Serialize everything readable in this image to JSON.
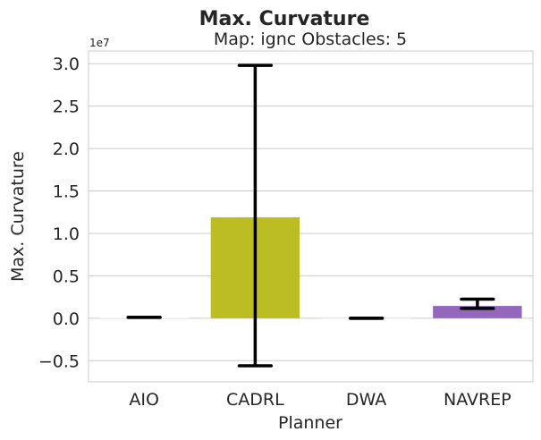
{
  "chart_data": {
    "type": "bar",
    "title": "Max. Curvature",
    "subtitle": "Map: ignc Obstacles: 5",
    "xlabel": "Planner",
    "ylabel": "Max. Curvature",
    "y_offset_label": "1e7",
    "y_scale": 10000000,
    "ylim": [
      -7500000,
      31500000
    ],
    "yticks": [
      -5000000,
      0,
      5000000,
      10000000,
      15000000,
      20000000,
      25000000,
      30000000
    ],
    "ytick_labels": [
      "−0.5",
      "0.0",
      "0.5",
      "1.0",
      "1.5",
      "2.0",
      "2.5",
      "3.0"
    ],
    "grid": true,
    "categories": [
      "AIO",
      "CADRL",
      "DWA",
      "NAVREP"
    ],
    "values": [
      100000,
      11900000,
      0,
      1450000
    ],
    "error_low": [
      100000,
      -5600000,
      0,
      1150000
    ],
    "error_high": [
      100000,
      29800000,
      0,
      2250000
    ],
    "colors": [
      "#ffffff",
      "#bcbd22",
      "#ffffff",
      "#9467bd"
    ]
  }
}
